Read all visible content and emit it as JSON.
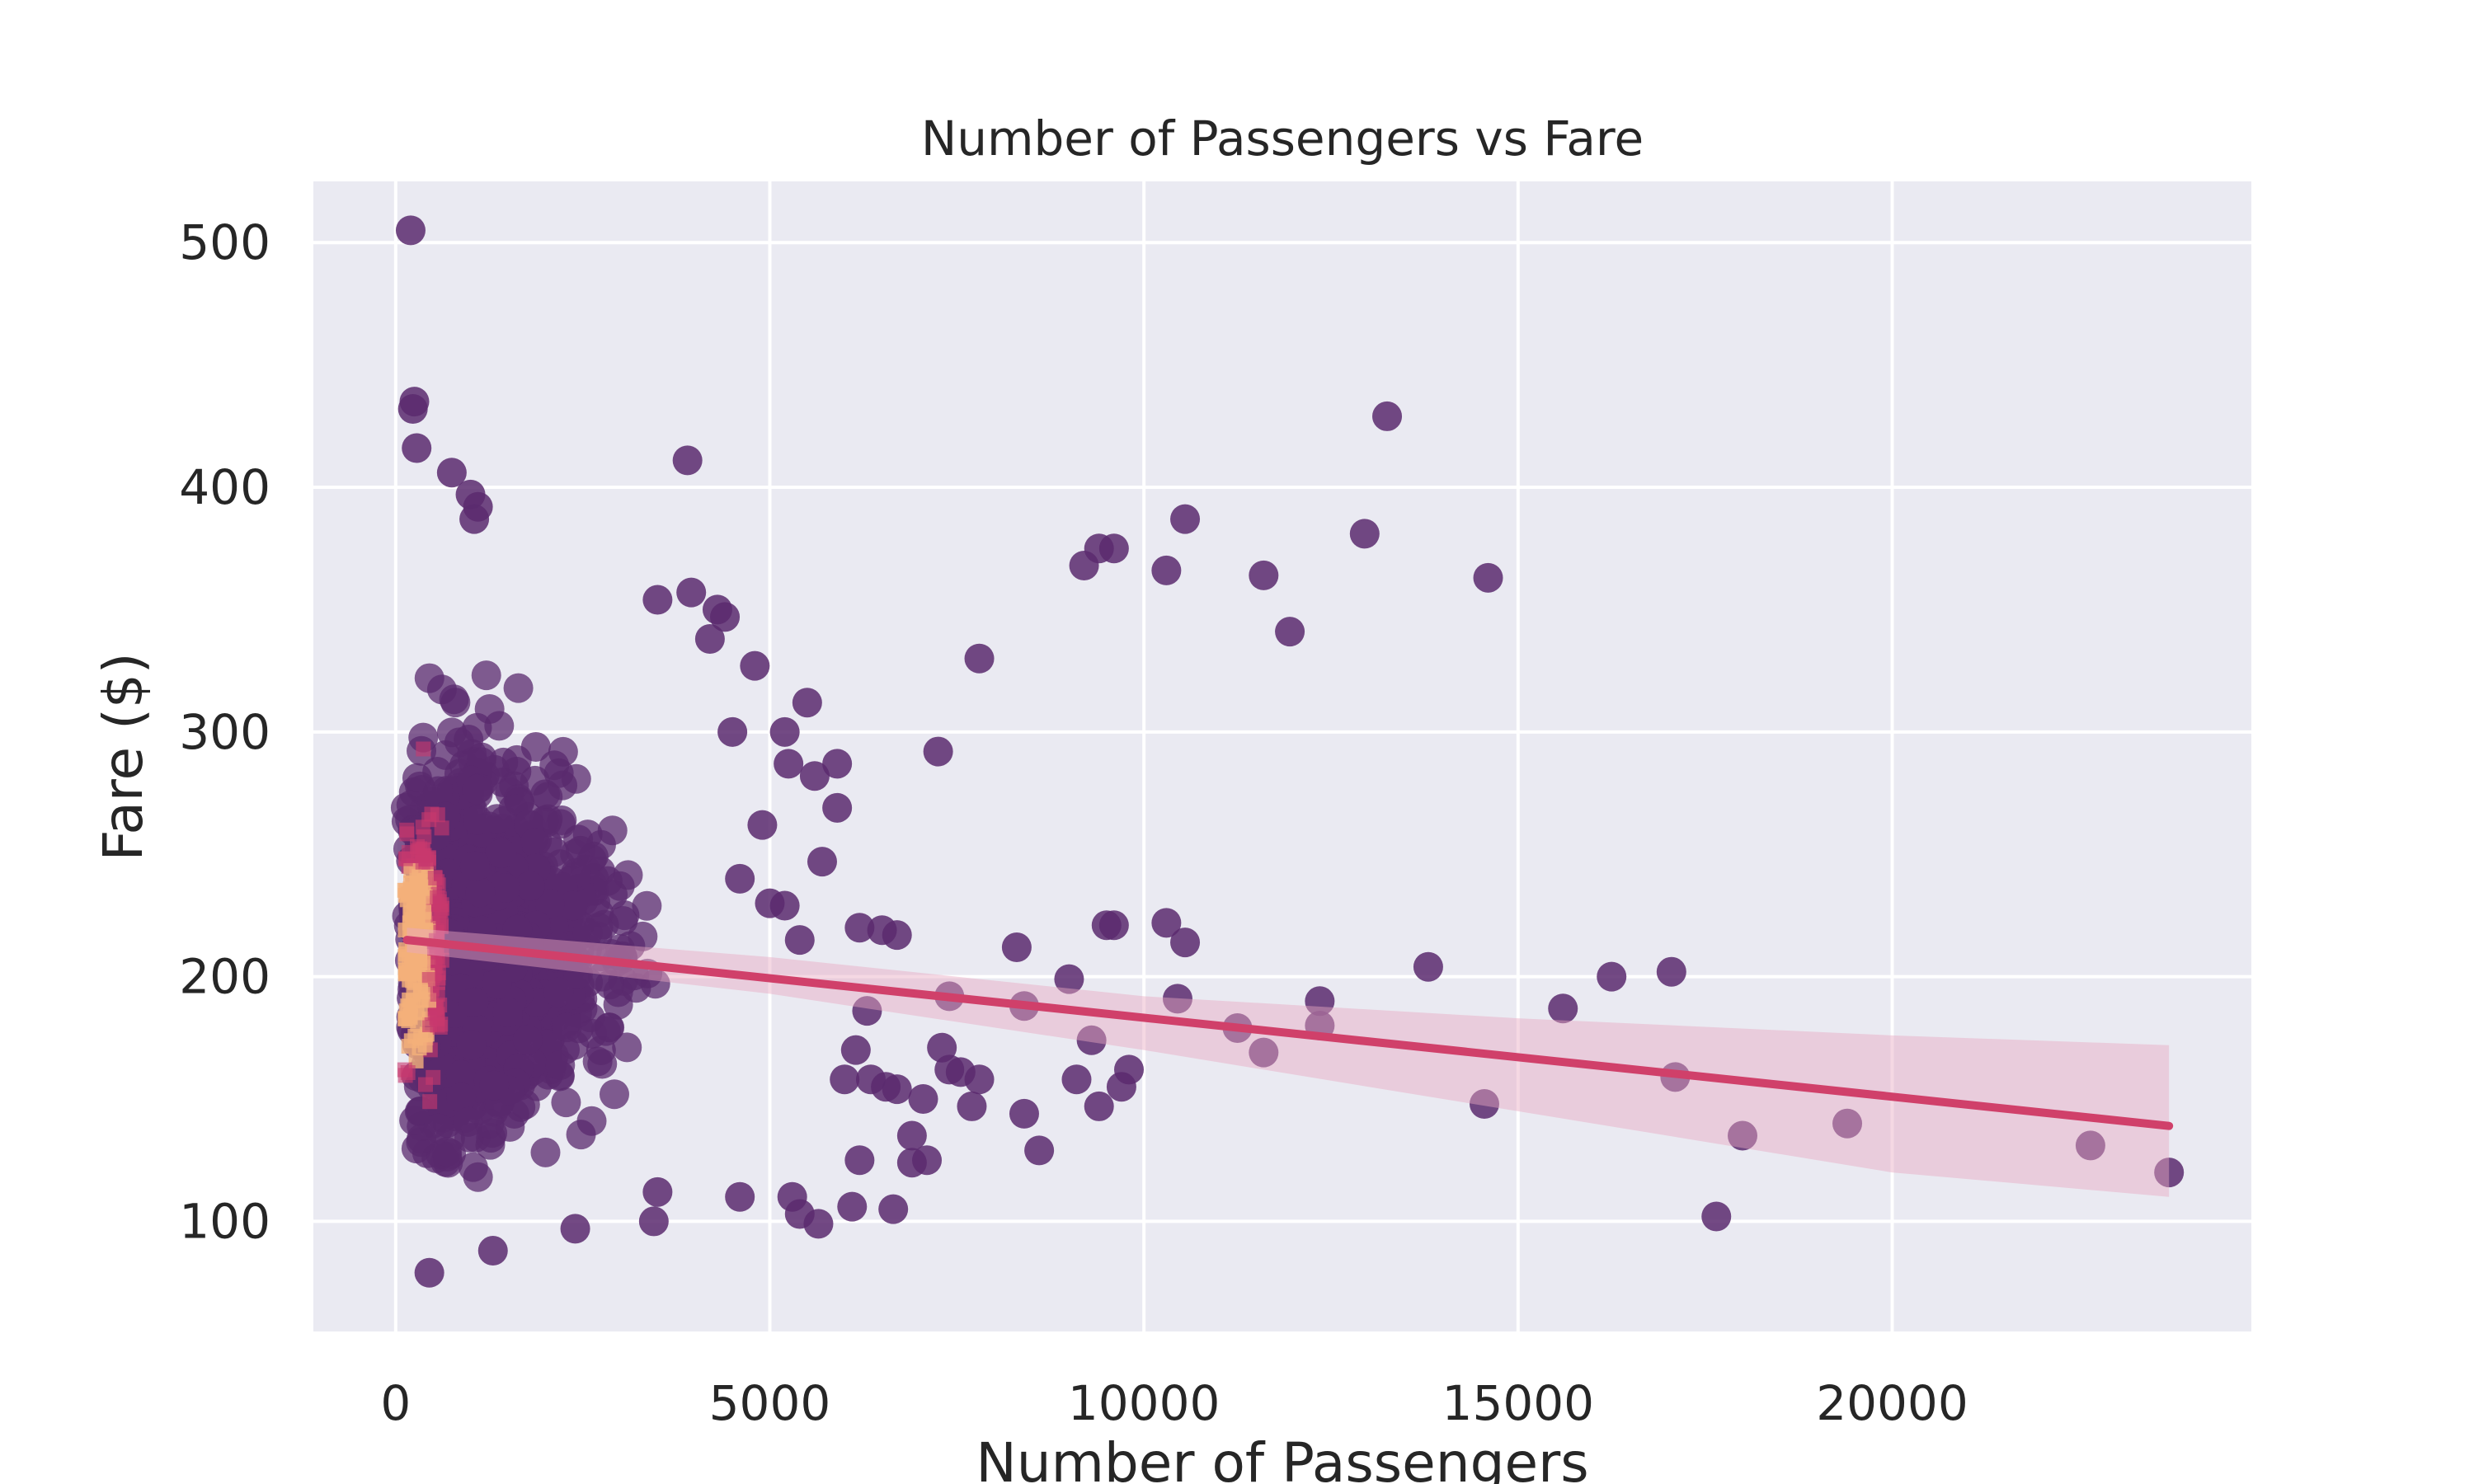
{
  "chart_data": {
    "type": "scatter",
    "title": "Number of Passengers vs Fare",
    "xlabel": "Number of Passengers",
    "ylabel": "Fare ($)",
    "xlim": [
      -1100,
      24800
    ],
    "ylim": [
      55,
      525
    ],
    "xticks": [
      0,
      5000,
      10000,
      15000,
      20000
    ],
    "yticks": [
      100,
      200,
      300,
      400,
      500
    ],
    "grid": true,
    "legend": "none",
    "colors": {
      "axes_bg": "#eaeaf2",
      "grid": "#ffffff",
      "points": "#5a2a6e",
      "density_low": "#5a2a6e",
      "density_mid": "#c8386e",
      "density_high": "#f4b07a",
      "regression": "#d0406a",
      "confidence_band": "#e8a8c0"
    },
    "regression": {
      "x": [
        150,
        23700
      ],
      "y": [
        215,
        139
      ],
      "ci_x": [
        150,
        5000,
        10000,
        15000,
        20000,
        23700
      ],
      "ci_lower": [
        210,
        193,
        170,
        145,
        120,
        110
      ],
      "ci_upper": [
        220,
        208,
        192,
        183,
        176,
        172
      ]
    },
    "outliers": [
      {
        "x": 200,
        "y": 505
      },
      {
        "x": 250,
        "y": 435
      },
      {
        "x": 230,
        "y": 432
      },
      {
        "x": 280,
        "y": 416
      },
      {
        "x": 750,
        "y": 406
      },
      {
        "x": 1000,
        "y": 397
      },
      {
        "x": 1100,
        "y": 392
      },
      {
        "x": 1050,
        "y": 387
      },
      {
        "x": 3900,
        "y": 411
      },
      {
        "x": 3500,
        "y": 354
      },
      {
        "x": 3950,
        "y": 357
      },
      {
        "x": 4300,
        "y": 350
      },
      {
        "x": 4400,
        "y": 347
      },
      {
        "x": 4800,
        "y": 327
      },
      {
        "x": 5200,
        "y": 300
      },
      {
        "x": 5500,
        "y": 312
      },
      {
        "x": 5600,
        "y": 282
      },
      {
        "x": 5900,
        "y": 287
      },
      {
        "x": 5900,
        "y": 269
      },
      {
        "x": 5700,
        "y": 247
      },
      {
        "x": 6200,
        "y": 220
      },
      {
        "x": 6500,
        "y": 219
      },
      {
        "x": 6700,
        "y": 217
      },
      {
        "x": 7250,
        "y": 292
      },
      {
        "x": 7800,
        "y": 330
      },
      {
        "x": 7400,
        "y": 192
      },
      {
        "x": 8300,
        "y": 212
      },
      {
        "x": 8400,
        "y": 188
      },
      {
        "x": 8400,
        "y": 144
      },
      {
        "x": 8600,
        "y": 129
      },
      {
        "x": 9000,
        "y": 199
      },
      {
        "x": 9200,
        "y": 368
      },
      {
        "x": 9400,
        "y": 375
      },
      {
        "x": 9600,
        "y": 375
      },
      {
        "x": 9500,
        "y": 221
      },
      {
        "x": 9600,
        "y": 221
      },
      {
        "x": 9300,
        "y": 174
      },
      {
        "x": 9100,
        "y": 158
      },
      {
        "x": 9400,
        "y": 147
      },
      {
        "x": 9700,
        "y": 155
      },
      {
        "x": 9800,
        "y": 162
      },
      {
        "x": 10300,
        "y": 366
      },
      {
        "x": 10550,
        "y": 387
      },
      {
        "x": 10300,
        "y": 222
      },
      {
        "x": 10550,
        "y": 214
      },
      {
        "x": 10450,
        "y": 191
      },
      {
        "x": 11250,
        "y": 179
      },
      {
        "x": 11600,
        "y": 364
      },
      {
        "x": 11950,
        "y": 341
      },
      {
        "x": 11600,
        "y": 169
      },
      {
        "x": 12350,
        "y": 190
      },
      {
        "x": 12350,
        "y": 180
      },
      {
        "x": 12950,
        "y": 381
      },
      {
        "x": 13250,
        "y": 429
      },
      {
        "x": 13800,
        "y": 204
      },
      {
        "x": 14600,
        "y": 363
      },
      {
        "x": 14550,
        "y": 148
      },
      {
        "x": 15600,
        "y": 187
      },
      {
        "x": 16250,
        "y": 200
      },
      {
        "x": 17050,
        "y": 202
      },
      {
        "x": 17100,
        "y": 159
      },
      {
        "x": 17650,
        "y": 102
      },
      {
        "x": 18000,
        "y": 135
      },
      {
        "x": 19400,
        "y": 140
      },
      {
        "x": 22650,
        "y": 131
      },
      {
        "x": 23700,
        "y": 120
      },
      {
        "x": 4600,
        "y": 110
      },
      {
        "x": 5300,
        "y": 110
      },
      {
        "x": 5400,
        "y": 103
      },
      {
        "x": 5650,
        "y": 99
      },
      {
        "x": 6100,
        "y": 106
      },
      {
        "x": 6650,
        "y": 105
      },
      {
        "x": 6900,
        "y": 124
      },
      {
        "x": 7100,
        "y": 125
      },
      {
        "x": 6900,
        "y": 135
      },
      {
        "x": 7050,
        "y": 150
      },
      {
        "x": 7300,
        "y": 171
      },
      {
        "x": 7400,
        "y": 162
      },
      {
        "x": 7550,
        "y": 161
      },
      {
        "x": 7800,
        "y": 158
      },
      {
        "x": 7700,
        "y": 147
      },
      {
        "x": 6300,
        "y": 186
      },
      {
        "x": 6150,
        "y": 170
      },
      {
        "x": 6350,
        "y": 158
      },
      {
        "x": 6550,
        "y": 155
      },
      {
        "x": 6700,
        "y": 154
      },
      {
        "x": 6000,
        "y": 158
      },
      {
        "x": 6200,
        "y": 125
      },
      {
        "x": 3450,
        "y": 100
      },
      {
        "x": 3500,
        "y": 112
      },
      {
        "x": 2400,
        "y": 97
      },
      {
        "x": 1300,
        "y": 88
      },
      {
        "x": 450,
        "y": 79
      },
      {
        "x": 5000,
        "y": 230
      },
      {
        "x": 5200,
        "y": 229
      },
      {
        "x": 4600,
        "y": 240
      },
      {
        "x": 5400,
        "y": 215
      },
      {
        "x": 4900,
        "y": 262
      },
      {
        "x": 5250,
        "y": 287
      },
      {
        "x": 4500,
        "y": 300
      },
      {
        "x": 4200,
        "y": 338
      }
    ]
  }
}
